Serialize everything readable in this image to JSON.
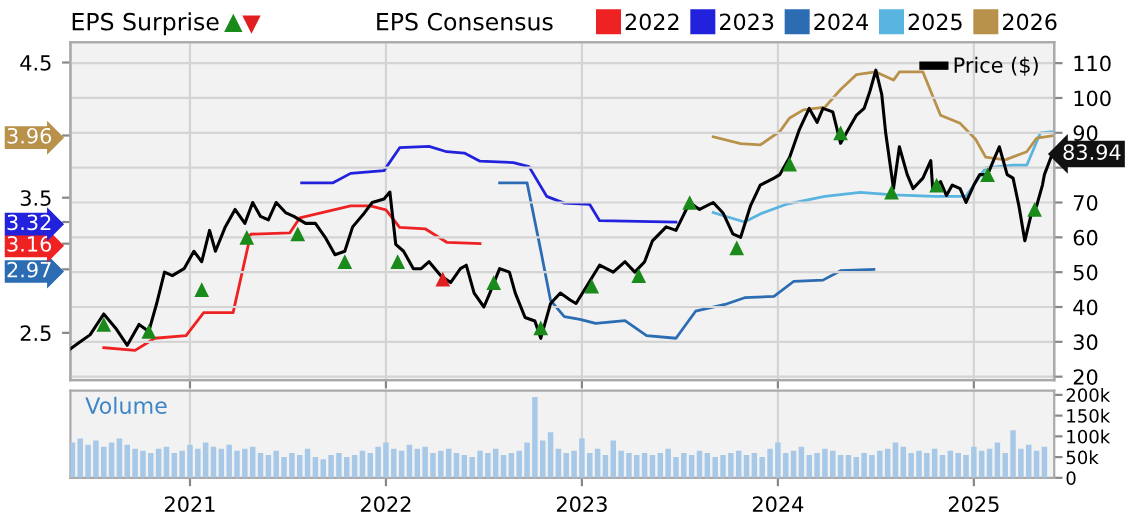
{
  "chart_data": [
    {
      "type": "line",
      "title": "EPS Surprise",
      "legend_title": "EPS Consensus",
      "legend": "top",
      "grid": true,
      "tick_labels": "y",
      "xlim": [
        2020.39,
        2025.41
      ],
      "xticks": [
        2021,
        2022,
        2023,
        2024,
        2025
      ],
      "ylim": [
        2.15,
        4.65
      ],
      "yticks": [
        2.5,
        2.97,
        3.16,
        3.32,
        3.5,
        3.96,
        4.5
      ],
      "y2lim": [
        19,
        116
      ],
      "y2ticks": [
        20,
        30,
        40,
        50,
        60,
        70,
        {
          "value": 80,
          "label": null
        },
        90,
        100,
        110
      ],
      "series": [
        {
          "name": "2022",
          "color": "#ee2222",
          "x": [
            2020.56,
            2020.72,
            2020.82,
            2020.98,
            2021.07,
            2021.22,
            2021.31,
            2021.51,
            2021.56,
            2021.82,
            2021.92,
            2022.0,
            2022.07,
            2022.2,
            2022.31,
            2022.48
          ],
          "values": [
            2.39,
            2.37,
            2.46,
            2.48,
            2.65,
            2.65,
            3.23,
            3.24,
            3.35,
            3.44,
            3.44,
            3.41,
            3.28,
            3.27,
            3.17,
            3.16
          ]
        },
        {
          "name": "2023",
          "color": "#2222dd",
          "x": [
            2021.57,
            2021.73,
            2021.82,
            2021.99,
            2022.07,
            2022.22,
            2022.31,
            2022.4,
            2022.48,
            2022.65,
            2022.73,
            2022.82,
            2022.91,
            2023.04,
            2023.09,
            2023.48
          ],
          "values": [
            3.61,
            3.61,
            3.68,
            3.7,
            3.87,
            3.88,
            3.84,
            3.83,
            3.77,
            3.76,
            3.73,
            3.51,
            3.46,
            3.45,
            3.33,
            3.32
          ]
        },
        {
          "name": "2024",
          "color": "#2b6cb3",
          "x": [
            2022.58,
            2022.72,
            2022.79,
            2022.84,
            2022.91,
            2022.99,
            2023.07,
            2023.22,
            2023.33,
            2023.48,
            2023.58,
            2023.73,
            2023.83,
            2023.98,
            2024.08,
            2024.23,
            2024.32,
            2024.49
          ],
          "values": [
            3.61,
            3.61,
            3.11,
            2.74,
            2.62,
            2.6,
            2.57,
            2.59,
            2.48,
            2.46,
            2.66,
            2.71,
            2.76,
            2.77,
            2.88,
            2.89,
            2.96,
            2.97
          ]
        },
        {
          "name": "2025",
          "color": "#5ab4e0",
          "x": [
            2023.67,
            2023.83,
            2023.91,
            2024.04,
            2024.24,
            2024.42,
            2024.59,
            2024.8,
            2024.96,
            2025.06,
            2025.2,
            2025.27,
            2025.34,
            2025.41
          ],
          "values": [
            3.39,
            3.32,
            3.38,
            3.45,
            3.51,
            3.54,
            3.52,
            3.51,
            3.51,
            3.72,
            3.74,
            3.74,
            3.98,
            3.99
          ]
        },
        {
          "name": "2026",
          "color": "#b8914a",
          "x": [
            2023.67,
            2023.81,
            2023.91,
            2024.01,
            2024.06,
            2024.13,
            2024.24,
            2024.32,
            2024.4,
            2024.5,
            2024.59,
            2024.62,
            2024.74,
            2024.83,
            2024.93,
            2025.01,
            2025.06,
            2025.16,
            2025.27,
            2025.32,
            2025.41
          ],
          "values": [
            3.95,
            3.9,
            3.89,
            3.99,
            4.09,
            4.15,
            4.17,
            4.3,
            4.41,
            4.43,
            4.37,
            4.43,
            4.43,
            4.11,
            4.05,
            3.93,
            3.8,
            3.78,
            3.84,
            3.94,
            3.96
          ]
        },
        {
          "name": "Price ($)",
          "color": "#000000",
          "axis": "y2",
          "x": [
            2020.39,
            2020.44,
            2020.49,
            2020.56,
            2020.62,
            2020.68,
            2020.74,
            2020.79,
            2020.83,
            2020.87,
            2020.91,
            2020.97,
            2021.02,
            2021.06,
            2021.1,
            2021.13,
            2021.18,
            2021.23,
            2021.28,
            2021.32,
            2021.36,
            2021.4,
            2021.44,
            2021.49,
            2021.53,
            2021.59,
            2021.64,
            2021.69,
            2021.74,
            2021.79,
            2021.83,
            2021.89,
            2021.93,
            2021.99,
            2022.02,
            2022.05,
            2022.09,
            2022.14,
            2022.18,
            2022.22,
            2022.28,
            2022.33,
            2022.38,
            2022.41,
            2022.45,
            2022.5,
            2022.53,
            2022.58,
            2022.63,
            2022.66,
            2022.71,
            2022.76,
            2022.79,
            2022.84,
            2022.89,
            2022.94,
            2022.97,
            2023.09,
            2023.16,
            2023.22,
            2023.27,
            2023.32,
            2023.36,
            2023.43,
            2023.48,
            2023.55,
            2023.6,
            2023.67,
            2023.72,
            2023.77,
            2023.81,
            2023.86,
            2023.91,
            2023.98,
            2024.01,
            2024.06,
            2024.11,
            2024.16,
            2024.2,
            2024.23,
            2024.28,
            2024.32,
            2024.37,
            2024.4,
            2024.44,
            2024.47,
            2024.5,
            2024.53,
            2024.55,
            2024.59,
            2024.62,
            2024.66,
            2024.69,
            2024.74,
            2024.78,
            2024.79,
            2024.83,
            2024.86,
            2024.89,
            2024.93,
            2024.96,
            2025.0,
            2025.03,
            2025.07,
            2025.1,
            2025.13,
            2025.17,
            2025.2,
            2025.23,
            2025.26,
            2025.29,
            2025.32,
            2025.35,
            2025.36,
            2025.4
          ],
          "values": [
            28,
            30,
            32,
            38,
            34,
            29,
            35,
            33,
            41,
            50,
            49,
            51,
            56,
            53,
            62,
            56,
            63,
            68,
            64,
            70,
            66,
            65,
            70,
            67,
            66,
            64,
            64,
            60,
            55,
            56,
            63,
            67,
            70,
            71,
            73,
            58,
            56,
            51,
            51,
            53,
            49,
            47,
            51,
            52,
            44,
            40,
            44,
            51,
            50,
            44,
            37,
            36,
            31,
            41,
            44,
            42,
            41,
            52,
            50,
            53,
            50,
            53,
            59,
            63,
            62,
            70,
            68,
            70,
            67,
            61,
            60,
            69,
            75,
            77,
            78,
            83,
            91,
            97,
            93,
            97,
            96,
            87,
            92,
            95,
            97,
            102,
            108,
            101,
            90,
            74,
            86,
            78,
            74,
            77,
            82,
            74,
            76,
            72,
            75,
            74,
            70,
            75,
            78,
            78,
            82,
            86,
            78,
            77,
            69,
            59,
            66,
            69,
            75,
            78,
            83.94
          ],
          "value_labels": [
            null,
            null,
            null,
            null,
            null,
            null,
            null,
            null,
            null,
            null,
            null,
            null,
            null,
            null,
            null,
            null,
            null,
            null,
            null,
            null,
            null,
            null,
            null,
            null,
            null,
            null,
            null,
            null,
            null,
            null,
            null,
            null,
            null,
            null,
            null,
            null,
            null,
            null,
            null,
            null,
            null,
            null,
            null,
            null,
            null,
            null,
            null,
            null,
            null,
            null,
            null,
            null,
            null,
            null,
            null,
            null,
            null,
            null,
            null,
            null,
            null,
            null,
            null,
            null,
            null,
            null,
            null,
            null,
            null,
            null,
            null,
            null,
            null,
            null,
            null,
            null,
            null,
            null,
            null,
            null,
            null,
            null,
            null,
            null,
            null,
            null,
            null,
            null,
            null,
            null,
            null,
            null,
            null,
            null,
            null,
            null,
            null,
            null,
            null,
            null,
            null,
            null,
            null,
            null,
            null,
            null,
            null,
            null,
            null,
            null,
            null,
            null,
            null,
            null,
            "83.94"
          ]
        },
        {
          "type": "scatter",
          "marker": "triangle",
          "color": "#1a8a1a",
          "axis": "y2",
          "x": [
            2020.56,
            2020.79,
            2021.06,
            2021.29,
            2021.55,
            2021.79,
            2022.06,
            2022.55,
            2022.79,
            2023.05,
            2023.29,
            2023.55,
            2023.79,
            2024.06,
            2024.32,
            2024.58,
            2024.81,
            2025.07,
            2025.31
          ],
          "values": [
            35,
            33,
            45,
            60,
            61,
            53,
            53,
            47,
            34,
            46,
            49,
            70,
            57,
            81,
            90,
            73,
            75,
            78,
            68
          ]
        },
        {
          "type": "scatter",
          "marker": "triangle",
          "color": "#e02020",
          "axis": "y2",
          "x": [
            2022.29
          ],
          "values": [
            48
          ]
        }
      ]
    },
    {
      "type": "bar",
      "title": "Volume",
      "color": "#a8c8e8",
      "grid": "x",
      "xlim": [
        2020.39,
        2025.41
      ],
      "xticks": [
        2021,
        2022,
        2023,
        2024,
        2025
      ],
      "ylim": [
        0,
        210000
      ],
      "yticks": [
        0,
        {
          "value": 50000,
          "label": "50k"
        },
        {
          "value": 100000,
          "label": "100k"
        },
        {
          "value": 150000,
          "label": "150k"
        },
        {
          "value": 200000,
          "label": "200k"
        }
      ],
      "x": [
        2020.4,
        2020.44,
        2020.48,
        2020.52,
        2020.56,
        2020.6,
        2020.64,
        2020.68,
        2020.72,
        2020.76,
        2020.8,
        2020.84,
        2020.88,
        2020.92,
        2020.96,
        2021.0,
        2021.04,
        2021.08,
        2021.12,
        2021.16,
        2021.2,
        2021.24,
        2021.28,
        2021.32,
        2021.36,
        2021.4,
        2021.44,
        2021.48,
        2021.52,
        2021.56,
        2021.6,
        2021.64,
        2021.68,
        2021.72,
        2021.76,
        2021.8,
        2021.84,
        2021.88,
        2021.92,
        2021.96,
        2022.0,
        2022.04,
        2022.08,
        2022.12,
        2022.16,
        2022.2,
        2022.24,
        2022.28,
        2022.32,
        2022.36,
        2022.4,
        2022.44,
        2022.48,
        2022.52,
        2022.56,
        2022.6,
        2022.64,
        2022.68,
        2022.72,
        2022.76,
        2022.8,
        2022.84,
        2022.88,
        2022.92,
        2022.96,
        2023.0,
        2023.04,
        2023.08,
        2023.12,
        2023.16,
        2023.2,
        2023.24,
        2023.28,
        2023.32,
        2023.36,
        2023.4,
        2023.44,
        2023.48,
        2023.52,
        2023.56,
        2023.6,
        2023.64,
        2023.68,
        2023.72,
        2023.76,
        2023.8,
        2023.84,
        2023.88,
        2023.92,
        2023.96,
        2024.0,
        2024.04,
        2024.08,
        2024.12,
        2024.16,
        2024.2,
        2024.24,
        2024.28,
        2024.32,
        2024.36,
        2024.4,
        2024.44,
        2024.48,
        2024.52,
        2024.56,
        2024.6,
        2024.64,
        2024.68,
        2024.72,
        2024.76,
        2024.8,
        2024.84,
        2024.88,
        2024.92,
        2024.96,
        2025.0,
        2025.04,
        2025.08,
        2025.12,
        2025.16,
        2025.2,
        2025.24,
        2025.28,
        2025.32,
        2025.36
      ],
      "values": [
        85000,
        95000,
        80000,
        90000,
        75000,
        85000,
        95000,
        80000,
        70000,
        65000,
        60000,
        70000,
        75000,
        60000,
        65000,
        80000,
        70000,
        85000,
        75000,
        70000,
        80000,
        65000,
        70000,
        75000,
        60000,
        55000,
        65000,
        50000,
        60000,
        55000,
        70000,
        50000,
        45000,
        55000,
        60000,
        50000,
        55000,
        65000,
        60000,
        75000,
        85000,
        70000,
        65000,
        80000,
        70000,
        75000,
        60000,
        65000,
        70000,
        60000,
        55000,
        50000,
        65000,
        60000,
        70000,
        55000,
        60000,
        65000,
        85000,
        195000,
        90000,
        110000,
        70000,
        60000,
        65000,
        95000,
        60000,
        70000,
        55000,
        90000,
        65000,
        60000,
        55000,
        60000,
        55000,
        60000,
        70000,
        50000,
        60000,
        55000,
        65000,
        60000,
        50000,
        55000,
        60000,
        65000,
        55000,
        60000,
        50000,
        70000,
        85000,
        60000,
        65000,
        75000,
        55000,
        60000,
        70000,
        65000,
        55000,
        55000,
        50000,
        60000,
        55000,
        65000,
        70000,
        85000,
        75000,
        60000,
        65000,
        60000,
        70000,
        55000,
        65000,
        60000,
        55000,
        75000,
        65000,
        70000,
        85000,
        60000,
        115000,
        70000,
        80000,
        65000,
        75000
      ]
    }
  ]
}
